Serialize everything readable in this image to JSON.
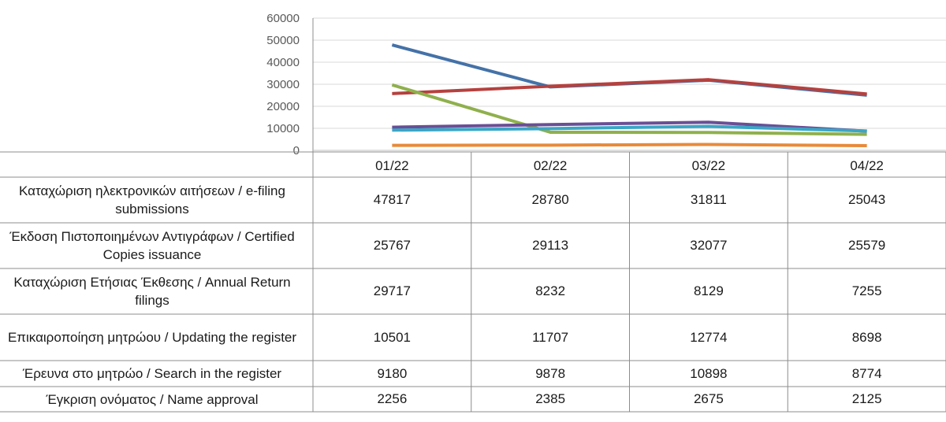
{
  "chart_data": {
    "type": "line",
    "categories": [
      "01/22",
      "02/22",
      "03/22",
      "04/22"
    ],
    "ylim": [
      0,
      60000
    ],
    "yticks": [
      0,
      10000,
      20000,
      30000,
      40000,
      50000,
      60000
    ],
    "grid": true,
    "series": [
      {
        "name": "Καταχώριση ηλεκτρονικών αιτήσεων / e-filing submissions",
        "color": "#4472a8",
        "values": [
          47817,
          28780,
          31811,
          25043
        ]
      },
      {
        "name": "Έκδοση Πιστοποιημένων Αντιγράφων / Certified Copies issuance",
        "color": "#b5413e",
        "values": [
          25767,
          29113,
          32077,
          25579
        ]
      },
      {
        "name": "Καταχώριση Ετήσιας Έκθεσης / Annual Return filings",
        "color": "#8fb04c",
        "values": [
          29717,
          8232,
          8129,
          7255
        ]
      },
      {
        "name": "Επικαιροποίηση μητρώου / Updating the register",
        "color": "#6a4f95",
        "values": [
          10501,
          11707,
          12774,
          8698
        ]
      },
      {
        "name": "Έρευνα στο μητρώο / Search in the register",
        "color": "#3aa6c6",
        "values": [
          9180,
          9878,
          10898,
          8774
        ]
      },
      {
        "name": "Έγκριση ονόματος / Name approval",
        "color": "#e88a3a",
        "values": [
          2256,
          2385,
          2675,
          2125
        ]
      }
    ]
  }
}
